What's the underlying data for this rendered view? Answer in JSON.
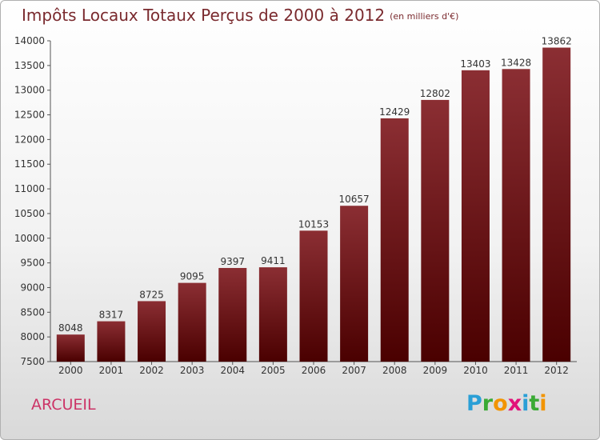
{
  "title": "Impôts Locaux Totaux Perçus de 2000 à 2012",
  "title_unit": "(en milliers d'€)",
  "commune": "ARCUEIL",
  "logo": {
    "letters": [
      "P",
      "r",
      "o",
      "x",
      "i",
      "t",
      "i"
    ]
  },
  "colors": {
    "bar_top": "#8b2e33",
    "bar_bottom": "#4a0000",
    "title": "#7a2a2e",
    "commune": "#cc3366"
  },
  "chart_data": {
    "type": "bar",
    "title": "Impôts Locaux Totaux Perçus de 2000 à 2012",
    "subtitle": "(en milliers d'€)",
    "xlabel": "",
    "ylabel": "",
    "categories": [
      "2000",
      "2001",
      "2002",
      "2003",
      "2004",
      "2005",
      "2006",
      "2007",
      "2008",
      "2009",
      "2010",
      "2011",
      "2012"
    ],
    "values": [
      8048,
      8317,
      8725,
      9095,
      9397,
      9411,
      10153,
      10657,
      12429,
      12802,
      13403,
      13428,
      13862
    ],
    "ylim": [
      7500,
      14000
    ],
    "yticks": [
      7500,
      8000,
      8500,
      9000,
      9500,
      10000,
      10500,
      11000,
      11500,
      12000,
      12500,
      13000,
      13500,
      14000
    ],
    "grid": false,
    "legend": "none"
  }
}
